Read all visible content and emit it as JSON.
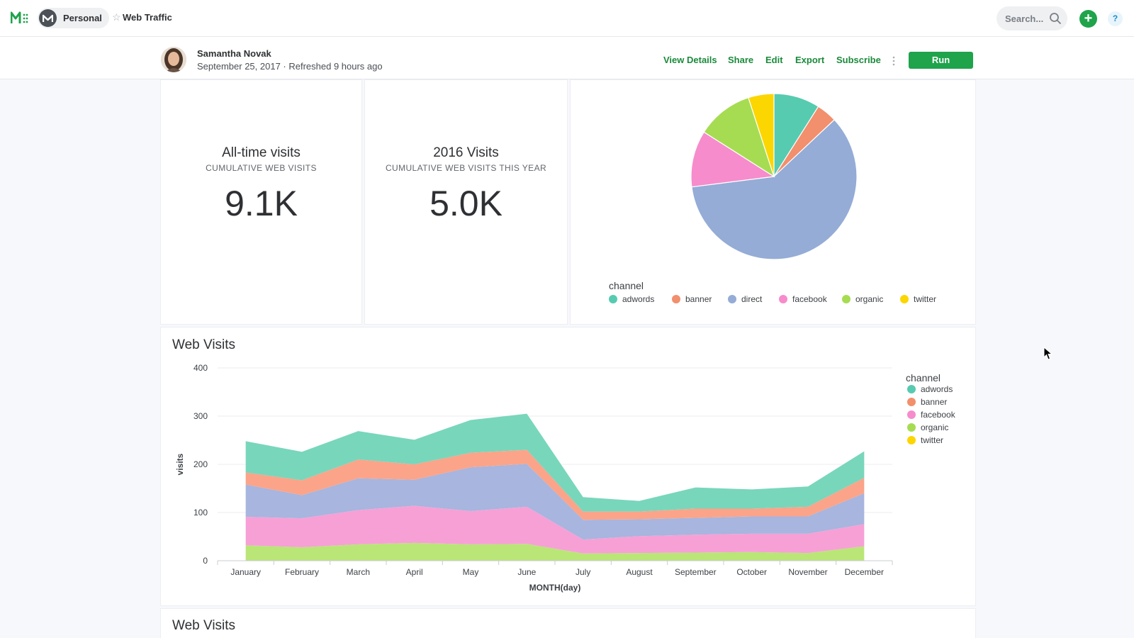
{
  "topbar": {
    "space_label": "Personal",
    "page_name": "Web Traffic",
    "search_placeholder": "Search...",
    "add_label": "+",
    "help_label": "?"
  },
  "header": {
    "author_name": "Samantha Novak",
    "meta": "September 25, 2017 · Refreshed 9 hours ago",
    "actions": [
      "View Details",
      "Share",
      "Edit",
      "Export",
      "Subscribe"
    ],
    "more_label": "⋮",
    "run_label": "Run"
  },
  "kpis": [
    {
      "title": "All-time visits",
      "subtitle": "CUMULATIVE WEB VISITS",
      "value": "9.1K"
    },
    {
      "title": "2016 Visits",
      "subtitle": "CUMULATIVE WEB VISITS THIS YEAR",
      "value": "5.0K"
    }
  ],
  "colors": {
    "adwords": "#56cbb0",
    "banner": "#f28f6c",
    "direct": "#94acd6",
    "facebook": "#f68ccc",
    "organic": "#a6dc52",
    "twitter": "#fcd600",
    "area_adwords": "#78d6bb",
    "area_banner": "#fba489",
    "area_facebook": "#a8b5de",
    "area_organic": "#f7a0d6",
    "area_twitter": "#b9e677",
    "accent_green": "#1fa34b"
  },
  "chart_data": [
    {
      "type": "pie",
      "legend_title": "channel",
      "legend_placement": "bottom",
      "categories": [
        "adwords",
        "banner",
        "direct",
        "facebook",
        "organic",
        "twitter"
      ],
      "values": [
        9,
        4,
        60,
        11,
        11,
        5
      ]
    },
    {
      "type": "area",
      "title": "Web Visits",
      "xlabel": "MONTH(day)",
      "ylabel": "visits",
      "ylim": [
        0,
        400
      ],
      "yticks": [
        0,
        100,
        200,
        300,
        400
      ],
      "grid": true,
      "stacked": true,
      "legend_title": "channel",
      "legend_placement": "right",
      "categories": [
        "January",
        "February",
        "March",
        "April",
        "May",
        "June",
        "July",
        "August",
        "September",
        "October",
        "November",
        "December"
      ],
      "series": [
        {
          "name": "twitter",
          "values": [
            32,
            28,
            34,
            37,
            34,
            35,
            15,
            16,
            17,
            18,
            16,
            30
          ]
        },
        {
          "name": "organic",
          "values": [
            59,
            60,
            71,
            77,
            69,
            77,
            29,
            35,
            37,
            38,
            40,
            46
          ]
        },
        {
          "name": "facebook",
          "values": [
            67,
            48,
            66,
            54,
            91,
            89,
            41,
            35,
            35,
            36,
            36,
            64
          ]
        },
        {
          "name": "banner",
          "values": [
            25,
            31,
            39,
            32,
            30,
            29,
            17,
            16,
            19,
            16,
            20,
            32
          ]
        },
        {
          "name": "adwords",
          "values": [
            65,
            59,
            59,
            51,
            68,
            75,
            30,
            22,
            44,
            40,
            42,
            55
          ]
        }
      ]
    }
  ],
  "bottom_card_title": "Web Visits"
}
